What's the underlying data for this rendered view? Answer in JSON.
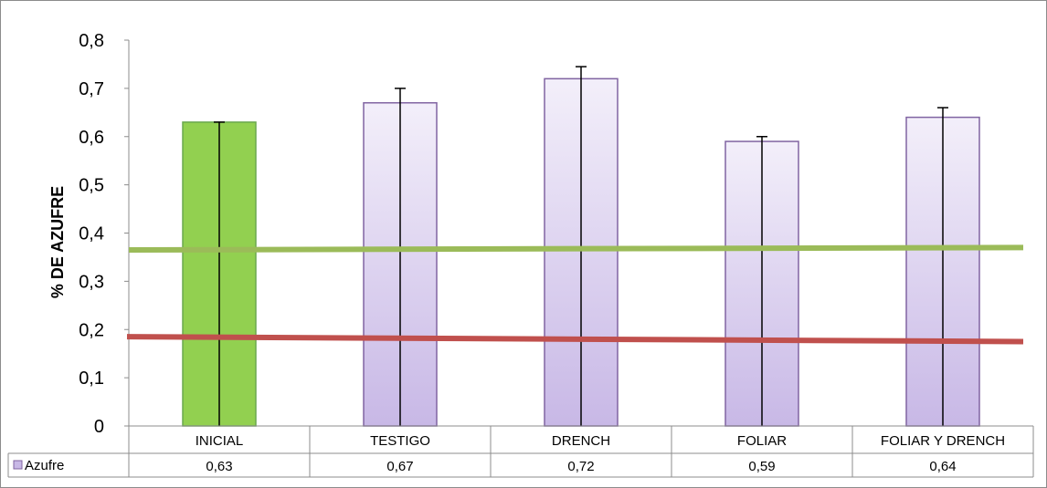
{
  "chart_data": {
    "type": "bar",
    "ylabel": "% DE AZUFRE",
    "xlabel": "",
    "ylim": [
      0,
      0.8
    ],
    "yticks": [
      "0",
      "0,1",
      "0,2",
      "0,3",
      "0,4",
      "0,5",
      "0,6",
      "0,7",
      "0,8"
    ],
    "ytick_values": [
      0,
      0.1,
      0.2,
      0.3,
      0.4,
      0.5,
      0.6,
      0.7,
      0.8
    ],
    "categories": [
      "INICIAL",
      "TESTIGO",
      "DRENCH",
      "FOLIAR",
      "FOLIAR Y DRENCH"
    ],
    "series": [
      {
        "name": "Azufre",
        "values": [
          0.63,
          0.67,
          0.72,
          0.59,
          0.64
        ],
        "error_upper": [
          0.0,
          0.03,
          0.025,
          0.01,
          0.02
        ],
        "error_lower": [
          0.63,
          0.67,
          0.72,
          0.59,
          0.64
        ],
        "value_labels": [
          "0,63",
          "0,67",
          "0,72",
          "0,59",
          "0,64"
        ]
      }
    ],
    "reference_lines": [
      {
        "y_start": 0.365,
        "y_end": 0.37,
        "color": "#9bbb59"
      },
      {
        "y_start": 0.185,
        "y_end": 0.175,
        "color": "#c0504d"
      }
    ],
    "colors": {
      "highlight_bar": "#92d050",
      "highlight_bar_border": "#6aa84f",
      "bar_fill_top": "#f3effa",
      "bar_fill_bottom": "#c8b8e6",
      "bar_border": "#8064a2"
    },
    "grid": false,
    "legend": "data-table"
  }
}
